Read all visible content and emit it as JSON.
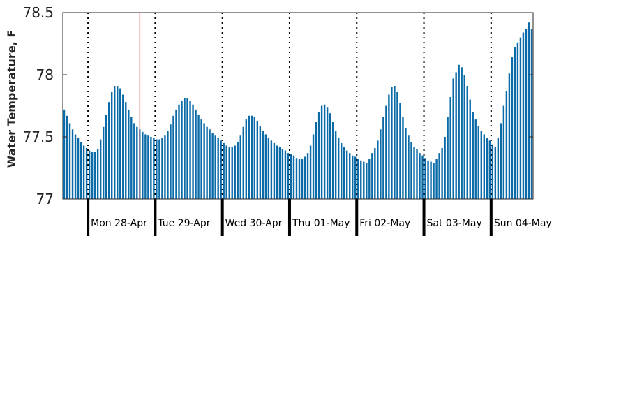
{
  "chart_data": {
    "type": "bar",
    "title": "",
    "xlabel": "",
    "ylabel": "Water Temperature, F",
    "ylim": [
      77,
      78.5
    ],
    "yticks": [
      "77",
      "77.5",
      "78",
      "78.5"
    ],
    "grid": false,
    "bar_color": "#0b6ba8",
    "marker_color": "#e8787a",
    "day_labels": [
      "Mon 28-Apr",
      "Tue 29-Apr",
      "Wed 30-Apr",
      "Thu 01-May",
      "Fri 02-May",
      "Sat 03-May",
      "Sun 04-May"
    ],
    "hours_before_first_day": 9,
    "marker_hour_index": 27,
    "values": [
      77.72,
      77.67,
      77.61,
      77.56,
      77.52,
      77.49,
      77.46,
      77.43,
      77.41,
      77.39,
      77.38,
      77.38,
      77.4,
      77.48,
      77.58,
      77.68,
      77.78,
      77.86,
      77.91,
      77.91,
      77.89,
      77.84,
      77.78,
      77.72,
      77.66,
      77.61,
      77.58,
      77.56,
      77.54,
      77.52,
      77.51,
      77.5,
      77.49,
      77.48,
      77.48,
      77.49,
      77.51,
      77.55,
      77.6,
      77.67,
      77.72,
      77.76,
      77.79,
      77.81,
      77.81,
      77.79,
      77.76,
      77.72,
      77.68,
      77.64,
      77.61,
      77.58,
      77.56,
      77.53,
      77.51,
      77.49,
      77.47,
      77.45,
      77.43,
      77.42,
      77.42,
      77.43,
      77.46,
      77.51,
      77.58,
      77.64,
      77.67,
      77.67,
      77.66,
      77.63,
      77.59,
      77.55,
      77.52,
      77.49,
      77.47,
      77.45,
      77.43,
      77.42,
      77.4,
      77.39,
      77.37,
      77.36,
      77.35,
      77.33,
      77.32,
      77.32,
      77.34,
      77.37,
      77.43,
      77.52,
      77.62,
      77.7,
      77.75,
      77.76,
      77.74,
      77.69,
      77.62,
      77.55,
      77.49,
      77.45,
      77.42,
      77.39,
      77.37,
      77.35,
      77.34,
      77.32,
      77.31,
      77.3,
      77.29,
      77.32,
      77.37,
      77.41,
      77.47,
      77.56,
      77.66,
      77.75,
      77.84,
      77.9,
      77.91,
      77.86,
      77.77,
      77.66,
      77.57,
      77.51,
      77.46,
      77.42,
      77.4,
      77.37,
      77.35,
      77.33,
      77.31,
      77.3,
      77.29,
      77.32,
      77.37,
      77.41,
      77.5,
      77.66,
      77.82,
      77.97,
      78.02,
      78.08,
      78.06,
      78.0,
      77.91,
      77.8,
      77.7,
      77.64,
      77.59,
      77.55,
      77.52,
      77.49,
      77.47,
      77.44,
      77.42,
      77.49,
      77.61,
      77.75,
      77.87,
      78.01,
      78.14,
      78.22,
      78.26,
      78.3,
      78.34,
      78.37,
      78.42,
      78.37
    ]
  }
}
